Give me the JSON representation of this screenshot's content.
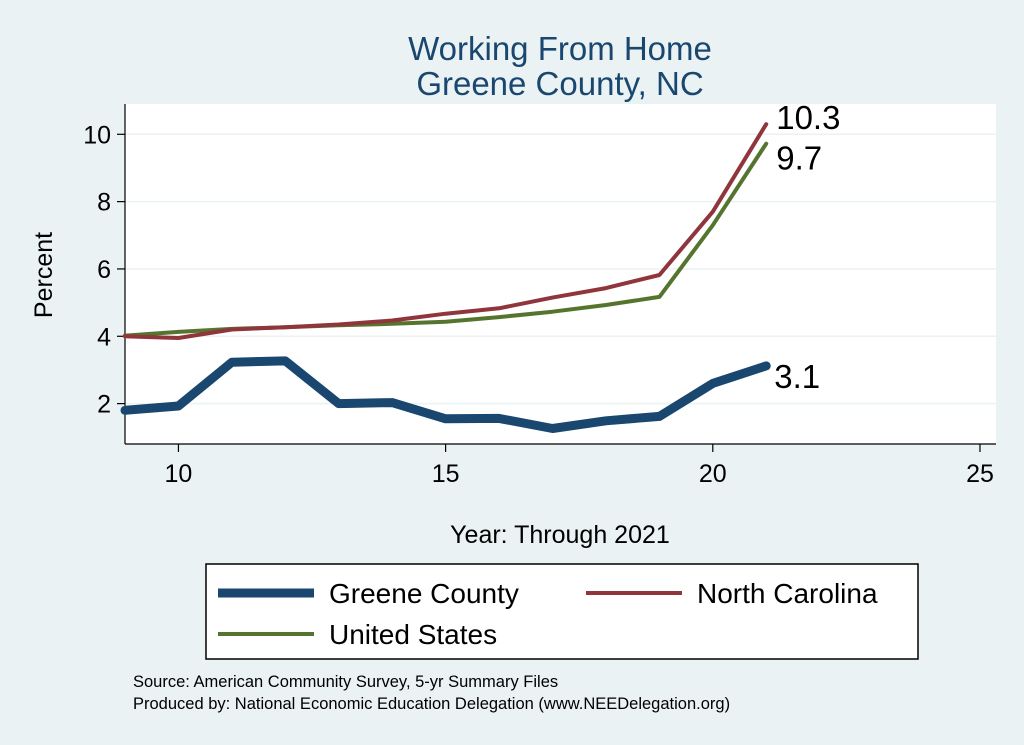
{
  "chart_data": {
    "type": "line",
    "title": "Working From Home",
    "subtitle": "Greene County, NC",
    "xlabel": "Year: Through 2021",
    "ylabel": "Percent",
    "xlim": [
      9,
      25.3
    ],
    "ylim": [
      0.8,
      10.9
    ],
    "xticks": [
      10,
      15,
      20,
      25
    ],
    "yticks": [
      2,
      4,
      6,
      8,
      10
    ],
    "grid": "horizontal",
    "legend_position": "bottom",
    "series": [
      {
        "name": "Greene County",
        "color": "#1a476f",
        "x": [
          9,
          10,
          11,
          12,
          13,
          14,
          15,
          16,
          17,
          18,
          19,
          20,
          21
        ],
        "y": [
          1.8,
          1.93,
          3.23,
          3.27,
          2.0,
          2.03,
          1.55,
          1.56,
          1.26,
          1.49,
          1.62,
          2.6,
          3.12
        ],
        "end_label": "3.1"
      },
      {
        "name": "North Carolina",
        "color": "#90353b",
        "x": [
          9,
          10,
          11,
          12,
          13,
          14,
          15,
          16,
          17,
          18,
          19,
          20,
          21
        ],
        "y": [
          4.0,
          3.95,
          4.2,
          4.27,
          4.35,
          4.47,
          4.67,
          4.83,
          5.15,
          5.43,
          5.82,
          7.7,
          10.3
        ],
        "end_label": "10.3"
      },
      {
        "name": "United States",
        "color": "#55752f",
        "x": [
          9,
          10,
          11,
          12,
          13,
          14,
          15,
          16,
          17,
          18,
          19,
          20,
          21
        ],
        "y": [
          4.02,
          4.13,
          4.22,
          4.27,
          4.33,
          4.37,
          4.43,
          4.57,
          4.73,
          4.93,
          5.17,
          7.3,
          9.72
        ],
        "end_label": "9.7"
      }
    ],
    "notes": [
      "Source: American Community Survey, 5-yr Summary Files",
      "Produced by: National Economic Education Delegation (www.NEEDelegation.org)"
    ]
  },
  "colors": {
    "background": "#eaf2f3",
    "plot_background": "#ffffff",
    "title": "#1a476f",
    "grid": "#eaf2f3"
  }
}
